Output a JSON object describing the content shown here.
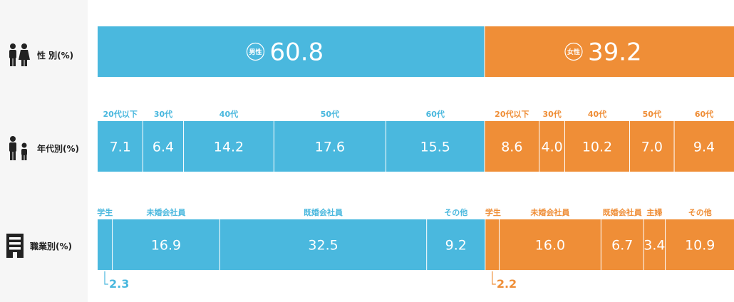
{
  "colors": {
    "male": "#4ab8de",
    "female": "#ef8e37",
    "divider": "#ffffff",
    "label_dark": "#222222"
  },
  "rows": [
    {
      "label": "性 別(%)",
      "icon": "male-female-icon"
    },
    {
      "label": "年代別(%)",
      "icon": "parent-child-icon"
    },
    {
      "label": "職業別(%)",
      "icon": "building-icon"
    }
  ],
  "chart_data": [
    {
      "type": "bar",
      "stacked": true,
      "orientation": "horizontal",
      "categories": [
        "男性",
        "女性"
      ],
      "values": [
        60.8,
        39.2
      ]
    },
    {
      "type": "bar",
      "stacked": true,
      "orientation": "horizontal",
      "series": [
        {
          "name": "男性",
          "categories": [
            "20代以下",
            "30代",
            "40代",
            "50代",
            "60代"
          ],
          "values": [
            7.1,
            6.4,
            14.2,
            17.6,
            15.5
          ]
        },
        {
          "name": "女性",
          "categories": [
            "20代以下",
            "30代",
            "40代",
            "50代",
            "60代"
          ],
          "values": [
            8.6,
            4.0,
            10.2,
            7.0,
            9.4
          ]
        }
      ]
    },
    {
      "type": "bar",
      "stacked": true,
      "orientation": "horizontal",
      "series": [
        {
          "name": "男性",
          "categories": [
            "学生",
            "未婚会社員",
            "既婚会社員",
            "その他"
          ],
          "values": [
            2.3,
            16.9,
            32.5,
            9.2
          ]
        },
        {
          "name": "女性",
          "categories": [
            "学生",
            "未婚会社員",
            "既婚会社員",
            "主婦",
            "その他"
          ],
          "values": [
            2.2,
            16.0,
            6.7,
            3.4,
            10.9
          ]
        }
      ]
    }
  ]
}
